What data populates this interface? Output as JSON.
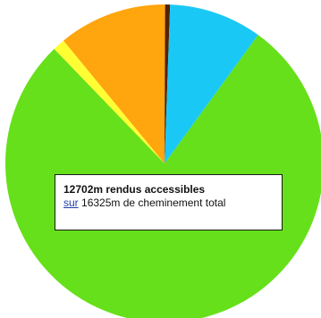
{
  "chart_data": {
    "type": "pie",
    "slices": [
      {
        "value": 12702,
        "color": "#66e01a"
      },
      {
        "value": 204,
        "color": "#ffff33"
      },
      {
        "value": 1796,
        "color": "#ffa50d"
      },
      {
        "value": 82,
        "color": "#552200"
      },
      {
        "value": 1541,
        "color": "#1ac8f5"
      }
    ]
  },
  "info_box": {
    "accessible_text": "12702m rendus accessibles",
    "link_text": "sur",
    "total_text": "16325m de cheminement total"
  }
}
